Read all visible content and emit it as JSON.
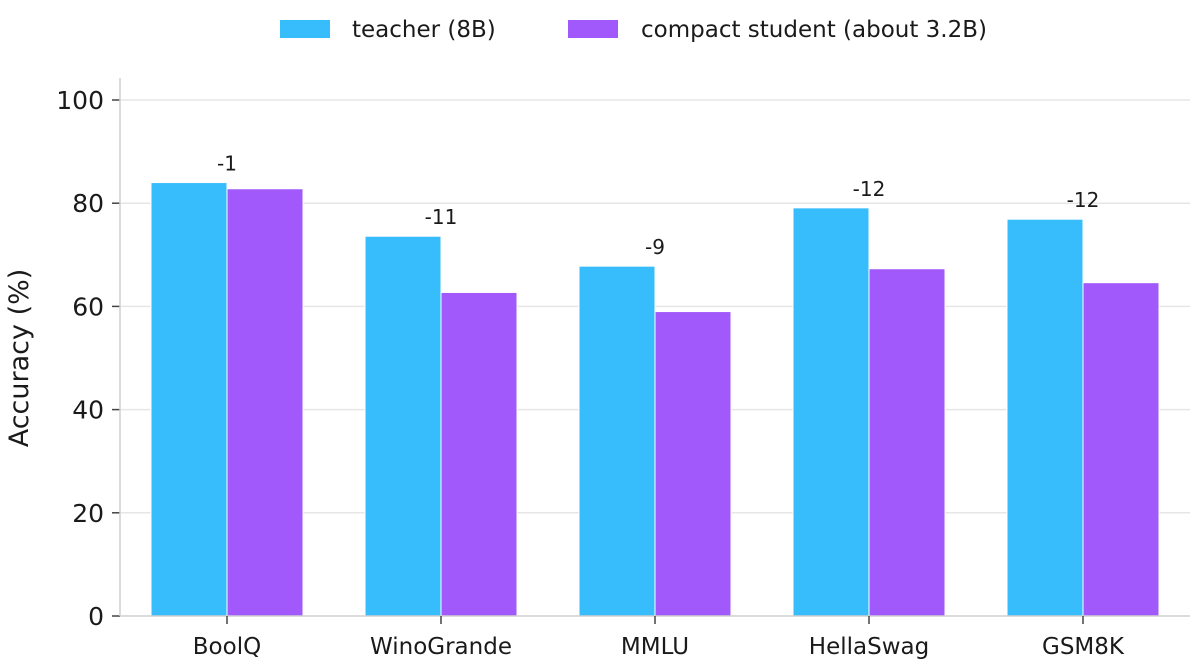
{
  "chart_data": {
    "type": "bar",
    "categories": [
      "BoolQ",
      "WinoGrande",
      "MMLU",
      "HellaSwag",
      "GSM8K"
    ],
    "series": [
      {
        "name": "teacher (8B)",
        "values": [
          84,
          73.6,
          67.8,
          79.1,
          76.9
        ],
        "color": "#38bdfc"
      },
      {
        "name": "compact student (about 3.2B)",
        "values": [
          82.8,
          62.7,
          59,
          67.3,
          64.6
        ],
        "color": "#a259fc"
      }
    ],
    "annotations": [
      "-1",
      "-11",
      "-9",
      "-12",
      "-12"
    ],
    "ylabel": "Accuracy (%)",
    "xlabel": "",
    "ylim": [
      0,
      100
    ],
    "yticks": [
      "0",
      "20",
      "40",
      "60",
      "80",
      "100"
    ],
    "grid": true,
    "legend_position": "top-center"
  }
}
